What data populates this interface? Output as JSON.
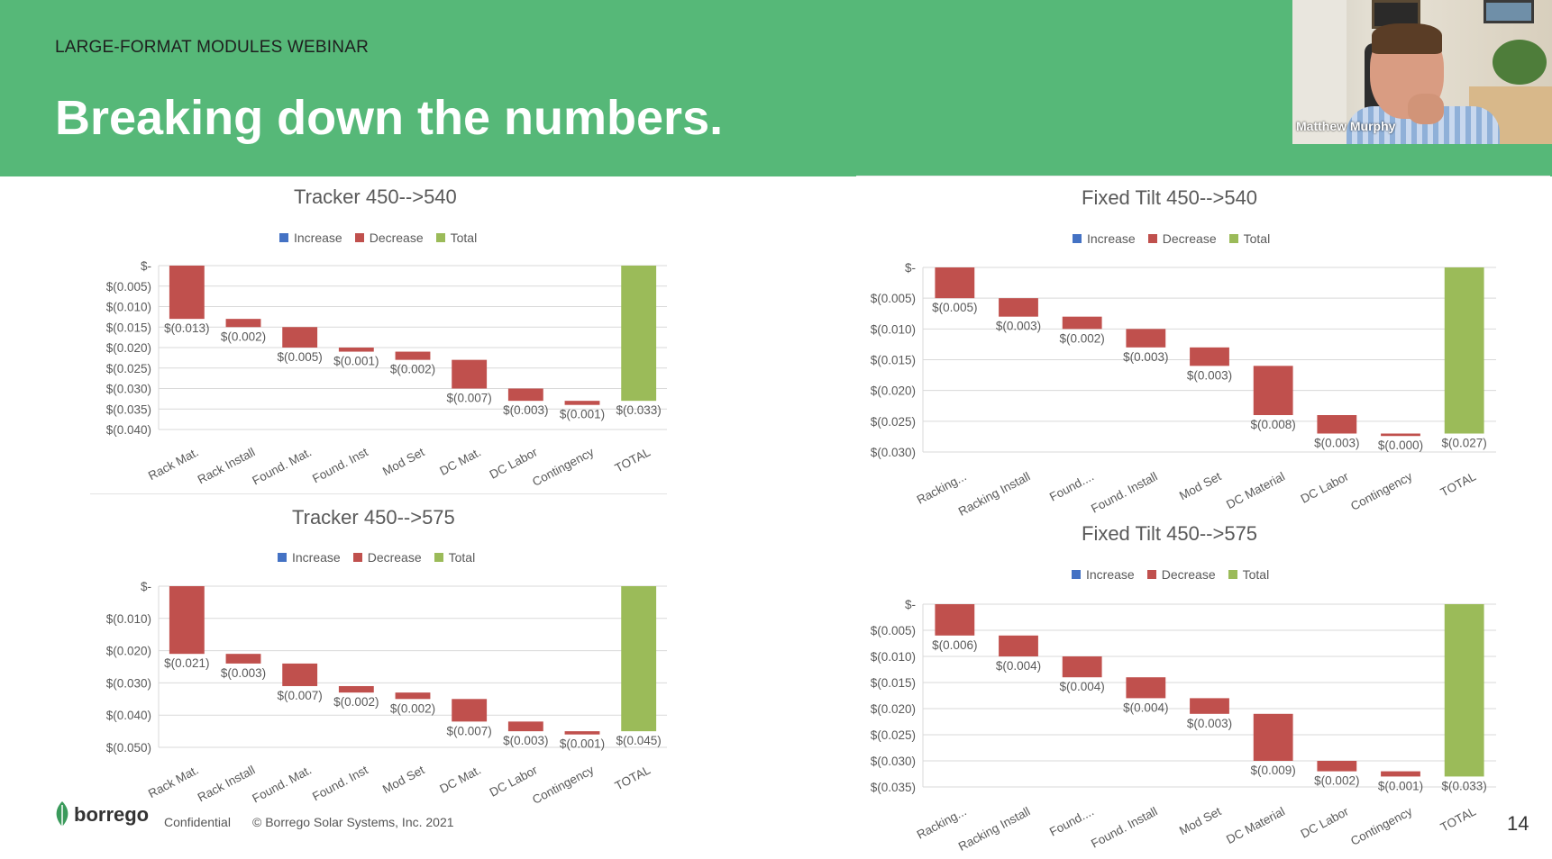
{
  "header": {
    "eyebrow": "LARGE-FORMAT MODULES WEBINAR",
    "title": "Breaking down the numbers."
  },
  "video": {
    "participant_name": "Matthew Murphy"
  },
  "legend": {
    "increase": "Increase",
    "decrease": "Decrease",
    "total": "Total"
  },
  "colors": {
    "header_bg": "#56b878",
    "increase": "#4472c4",
    "decrease": "#c0504d",
    "total": "#9bbb59",
    "grid": "#d9d9d9",
    "text": "#595959"
  },
  "footer": {
    "brand": "borrego",
    "confidential": "Confidential",
    "copyright": "© Borrego Solar Systems, Inc. 2021",
    "page_number": "14"
  },
  "chart_data": [
    {
      "type": "bar",
      "subtype": "waterfall",
      "title": "Tracker  450-->540",
      "categories": [
        "Rack Mat.",
        "Rack Install",
        "Found. Mat.",
        "Found. Inst",
        "Mod Set",
        "DC Mat.",
        "DC Labor",
        "Contingency",
        "TOTAL"
      ],
      "values": [
        -0.013,
        -0.002,
        -0.005,
        -0.001,
        -0.002,
        -0.007,
        -0.003,
        -0.001,
        -0.033
      ],
      "labels": [
        "$(0.013)",
        "$(0.002)",
        "$(0.005)",
        "$(0.001)",
        "$(0.002)",
        "$(0.007)",
        "$(0.003)",
        "$(0.001)",
        "$(0.033)"
      ],
      "ylim": [
        -0.04,
        0
      ],
      "yticks": [
        0,
        -0.005,
        -0.01,
        -0.015,
        -0.02,
        -0.025,
        -0.03,
        -0.035,
        -0.04
      ],
      "ytick_labels": [
        "$-",
        "$(0.005)",
        "$(0.010)",
        "$(0.015)",
        "$(0.020)",
        "$(0.025)",
        "$(0.030)",
        "$(0.035)",
        "$(0.040)"
      ],
      "legend": [
        "Increase",
        "Decrease",
        "Total"
      ],
      "legend_position": "top"
    },
    {
      "type": "bar",
      "subtype": "waterfall",
      "title": "Tracker  450-->575",
      "categories": [
        "Rack Mat.",
        "Rack Install",
        "Found. Mat.",
        "Found. Inst",
        "Mod Set",
        "DC Mat.",
        "DC Labor",
        "Contingency",
        "TOTAL"
      ],
      "values": [
        -0.021,
        -0.003,
        -0.007,
        -0.002,
        -0.002,
        -0.007,
        -0.003,
        -0.001,
        -0.045
      ],
      "labels": [
        "$(0.021)",
        "$(0.003)",
        "$(0.007)",
        "$(0.002)",
        "$(0.002)",
        "$(0.007)",
        "$(0.003)",
        "$(0.001)",
        "$(0.045)"
      ],
      "ylim": [
        -0.05,
        0
      ],
      "yticks": [
        0,
        -0.01,
        -0.02,
        -0.03,
        -0.04,
        -0.05
      ],
      "ytick_labels": [
        "$-",
        "$(0.010)",
        "$(0.020)",
        "$(0.030)",
        "$(0.040)",
        "$(0.050)"
      ],
      "legend": [
        "Increase",
        "Decrease",
        "Total"
      ],
      "legend_position": "top"
    },
    {
      "type": "bar",
      "subtype": "waterfall",
      "title": "Fixed Tilt 450-->540",
      "categories": [
        "Racking...",
        "Racking Install",
        "Found....",
        "Found. Install",
        "Mod Set",
        "DC Material",
        "DC Labor",
        "Contingency",
        "TOTAL"
      ],
      "values": [
        -0.005,
        -0.003,
        -0.002,
        -0.003,
        -0.003,
        -0.008,
        -0.003,
        -0.0004,
        -0.027
      ],
      "labels": [
        "$(0.005)",
        "$(0.003)",
        "$(0.002)",
        "$(0.003)",
        "$(0.003)",
        "$(0.008)",
        "$(0.003)",
        "$(0.000)",
        "$(0.027)"
      ],
      "ylim": [
        -0.03,
        0
      ],
      "yticks": [
        0,
        -0.005,
        -0.01,
        -0.015,
        -0.02,
        -0.025,
        -0.03
      ],
      "ytick_labels": [
        "$-",
        "$(0.005)",
        "$(0.010)",
        "$(0.015)",
        "$(0.020)",
        "$(0.025)",
        "$(0.030)"
      ],
      "legend": [
        "Increase",
        "Decrease",
        "Total"
      ],
      "legend_position": "top"
    },
    {
      "type": "bar",
      "subtype": "waterfall",
      "title": "Fixed Tilt 450-->575",
      "categories": [
        "Racking...",
        "Racking Install",
        "Found....",
        "Found. Install",
        "Mod Set",
        "DC Material",
        "DC Labor",
        "Contingency",
        "TOTAL"
      ],
      "values": [
        -0.006,
        -0.004,
        -0.004,
        -0.004,
        -0.003,
        -0.009,
        -0.002,
        -0.001,
        -0.033
      ],
      "labels": [
        "$(0.006)",
        "$(0.004)",
        "$(0.004)",
        "$(0.004)",
        "$(0.003)",
        "$(0.009)",
        "$(0.002)",
        "$(0.001)",
        "$(0.033)"
      ],
      "ylim": [
        -0.035,
        0
      ],
      "yticks": [
        0,
        -0.005,
        -0.01,
        -0.015,
        -0.02,
        -0.025,
        -0.03,
        -0.035
      ],
      "ytick_labels": [
        "$-",
        "$(0.005)",
        "$(0.010)",
        "$(0.015)",
        "$(0.020)",
        "$(0.025)",
        "$(0.030)",
        "$(0.035)"
      ],
      "legend": [
        "Increase",
        "Decrease",
        "Total"
      ],
      "legend_position": "top"
    }
  ]
}
